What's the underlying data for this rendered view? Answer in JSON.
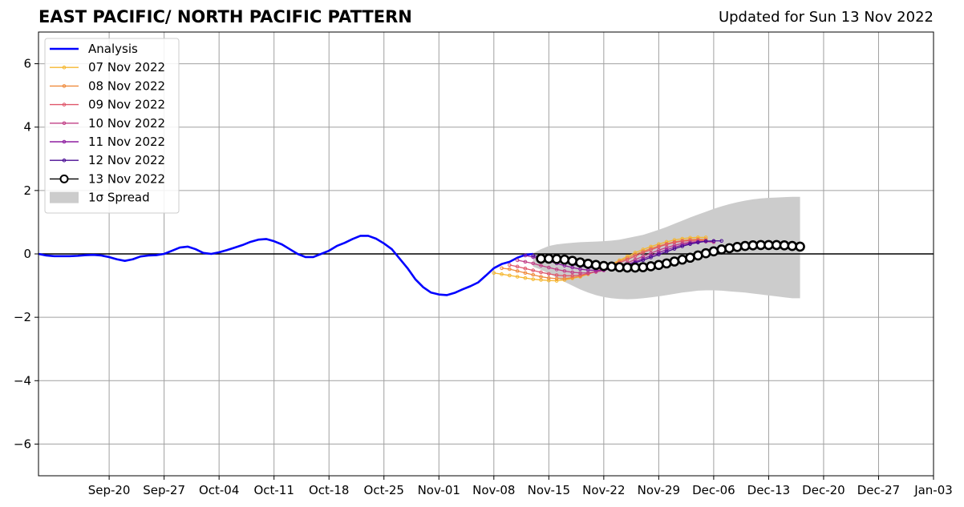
{
  "title_left": "EAST PACIFIC/ NORTH PACIFIC PATTERN",
  "title_right": "Updated for Sun 13 Nov 2022",
  "chart_data": {
    "type": "line",
    "title": "EAST PACIFIC/ NORTH PACIFIC PATTERN",
    "subtitle": "Updated for Sun 13 Nov 2022",
    "xlabel": "",
    "ylabel": "",
    "xlim": [
      "2022-09-11",
      "2023-01-03"
    ],
    "ylim": [
      -7,
      7
    ],
    "grid": true,
    "legend_position": "top-left",
    "xticks": [
      {
        "date": "2022-09-20",
        "label": "Sep-20"
      },
      {
        "date": "2022-09-27",
        "label": "Sep-27"
      },
      {
        "date": "2022-10-04",
        "label": "Oct-04"
      },
      {
        "date": "2022-10-11",
        "label": "Oct-11"
      },
      {
        "date": "2022-10-18",
        "label": "Oct-18"
      },
      {
        "date": "2022-10-25",
        "label": "Oct-25"
      },
      {
        "date": "2022-11-01",
        "label": "Nov-01"
      },
      {
        "date": "2022-11-08",
        "label": "Nov-08"
      },
      {
        "date": "2022-11-15",
        "label": "Nov-15"
      },
      {
        "date": "2022-11-22",
        "label": "Nov-22"
      },
      {
        "date": "2022-11-29",
        "label": "Nov-29"
      },
      {
        "date": "2022-12-06",
        "label": "Dec-06"
      },
      {
        "date": "2022-12-13",
        "label": "Dec-13"
      },
      {
        "date": "2022-12-20",
        "label": "Dec-20"
      },
      {
        "date": "2022-12-27",
        "label": "Dec-27"
      },
      {
        "date": "2023-01-03",
        "label": "Jan-03"
      }
    ],
    "yticks": [
      {
        "value": 6,
        "label": "6"
      },
      {
        "value": 4,
        "label": "4"
      },
      {
        "value": 2,
        "label": "2"
      },
      {
        "value": 0,
        "label": "0"
      },
      {
        "value": -2,
        "label": "−2"
      },
      {
        "value": -4,
        "label": "−4"
      },
      {
        "value": -6,
        "label": "−6"
      }
    ],
    "analysis": {
      "name": "Analysis",
      "color": "#0000ff",
      "start": "2022-09-11",
      "values": [
        0.0,
        -0.05,
        -0.07,
        -0.07,
        -0.07,
        -0.06,
        -0.04,
        -0.03,
        -0.05,
        -0.1,
        -0.17,
        -0.22,
        -0.17,
        -0.08,
        -0.05,
        -0.04,
        0.0,
        0.1,
        0.2,
        0.23,
        0.15,
        0.03,
        0.0,
        0.05,
        0.12,
        0.2,
        0.28,
        0.38,
        0.45,
        0.47,
        0.4,
        0.3,
        0.15,
        0.0,
        -0.1,
        -0.1,
        0.0,
        0.1,
        0.25,
        0.35,
        0.47,
        0.57,
        0.57,
        0.48,
        0.33,
        0.15,
        -0.15,
        -0.45,
        -0.8,
        -1.05,
        -1.22,
        -1.28,
        -1.3,
        -1.23,
        -1.12,
        -1.02,
        -0.9,
        -0.68,
        -0.45,
        -0.32,
        -0.25,
        -0.12,
        -0.03,
        0.0
      ]
    },
    "forecasts": [
      {
        "name": "07 Nov 2022",
        "color": "#f5b731",
        "start": "2022-11-08",
        "values": [
          -0.6,
          -0.64,
          -0.68,
          -0.72,
          -0.76,
          -0.8,
          -0.82,
          -0.84,
          -0.85,
          -0.82,
          -0.77,
          -0.72,
          -0.64,
          -0.55,
          -0.44,
          -0.32,
          -0.2,
          -0.08,
          0.04,
          0.14,
          0.23,
          0.31,
          0.38,
          0.44,
          0.48,
          0.51,
          0.52,
          0.52
        ]
      },
      {
        "name": "08 Nov 2022",
        "color": "#ef8a3c",
        "start": "2022-11-09",
        "values": [
          -0.45,
          -0.48,
          -0.54,
          -0.6,
          -0.66,
          -0.72,
          -0.76,
          -0.78,
          -0.78,
          -0.75,
          -0.7,
          -0.63,
          -0.55,
          -0.46,
          -0.35,
          -0.24,
          -0.13,
          -0.02,
          0.08,
          0.17,
          0.25,
          0.32,
          0.38,
          0.42,
          0.45,
          0.46,
          0.46
        ]
      },
      {
        "name": "09 Nov 2022",
        "color": "#e0576b",
        "start": "2022-11-10",
        "values": [
          -0.35,
          -0.4,
          -0.46,
          -0.52,
          -0.58,
          -0.63,
          -0.67,
          -0.69,
          -0.69,
          -0.67,
          -0.62,
          -0.55,
          -0.47,
          -0.38,
          -0.28,
          -0.18,
          -0.07,
          0.04,
          0.13,
          0.22,
          0.3,
          0.36,
          0.4,
          0.42,
          0.43,
          0.42
        ]
      },
      {
        "name": "10 Nov 2022",
        "color": "#c13f86",
        "start": "2022-11-11",
        "values": [
          -0.2,
          -0.25,
          -0.3,
          -0.37,
          -0.43,
          -0.49,
          -0.54,
          -0.58,
          -0.6,
          -0.6,
          -0.57,
          -0.52,
          -0.45,
          -0.37,
          -0.28,
          -0.18,
          -0.08,
          0.02,
          0.12,
          0.2,
          0.27,
          0.33,
          0.37,
          0.39,
          0.39,
          0.37
        ]
      },
      {
        "name": "11 Nov 2022",
        "color": "#8e1fa0",
        "start": "2022-11-12",
        "values": [
          -0.05,
          -0.1,
          -0.16,
          -0.23,
          -0.3,
          -0.37,
          -0.43,
          -0.48,
          -0.51,
          -0.52,
          -0.51,
          -0.47,
          -0.41,
          -0.33,
          -0.25,
          -0.15,
          -0.06,
          0.04,
          0.13,
          0.21,
          0.28,
          0.34,
          0.38,
          0.4,
          0.4
        ]
      },
      {
        "name": "12 Nov 2022",
        "color": "#4a0c93",
        "start": "2022-11-13",
        "values": [
          -0.05,
          -0.1,
          -0.15,
          -0.21,
          -0.27,
          -0.33,
          -0.38,
          -0.42,
          -0.45,
          -0.46,
          -0.45,
          -0.41,
          -0.35,
          -0.28,
          -0.2,
          -0.11,
          -0.02,
          0.07,
          0.16,
          0.24,
          0.31,
          0.36,
          0.4,
          0.41,
          0.41
        ]
      },
      {
        "name": "13 Nov 2022",
        "color": "#000000",
        "start": "2022-11-14",
        "values": [
          -0.15,
          -0.15,
          -0.16,
          -0.18,
          -0.22,
          -0.27,
          -0.31,
          -0.35,
          -0.38,
          -0.4,
          -0.42,
          -0.43,
          -0.43,
          -0.42,
          -0.39,
          -0.35,
          -0.3,
          -0.24,
          -0.18,
          -0.12,
          -0.05,
          0.02,
          0.08,
          0.14,
          0.18,
          0.22,
          0.25,
          0.27,
          0.28,
          0.28,
          0.28,
          0.27,
          0.25,
          0.23
        ]
      }
    ],
    "spread": {
      "name": "1σ Spread",
      "color": "#cccccc",
      "start": "2022-11-13",
      "upper": [
        0.02,
        0.15,
        0.25,
        0.3,
        0.33,
        0.35,
        0.37,
        0.38,
        0.39,
        0.4,
        0.42,
        0.45,
        0.5,
        0.55,
        0.6,
        0.68,
        0.76,
        0.85,
        0.95,
        1.05,
        1.15,
        1.24,
        1.33,
        1.42,
        1.5,
        1.57,
        1.63,
        1.68,
        1.72,
        1.75,
        1.77,
        1.78,
        1.79,
        1.8,
        1.8
      ],
      "lower": [
        -0.4,
        -0.5,
        -0.62,
        -0.75,
        -0.88,
        -1.0,
        -1.12,
        -1.22,
        -1.3,
        -1.36,
        -1.4,
        -1.42,
        -1.43,
        -1.42,
        -1.4,
        -1.37,
        -1.34,
        -1.3,
        -1.26,
        -1.22,
        -1.19,
        -1.16,
        -1.15,
        -1.15,
        -1.16,
        -1.18,
        -1.2,
        -1.22,
        -1.25,
        -1.28,
        -1.31,
        -1.34,
        -1.37,
        -1.4,
        -1.4
      ]
    }
  }
}
